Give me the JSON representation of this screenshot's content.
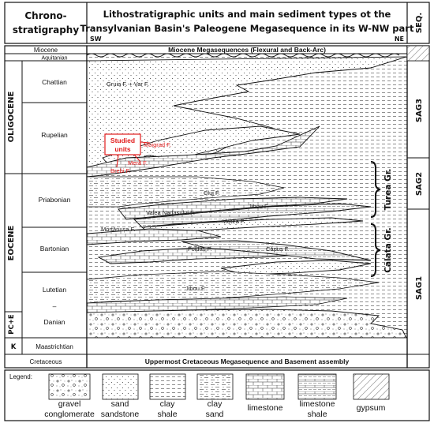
{
  "header": {
    "chrono_line1": "Chrono-",
    "chrono_line2": "stratigraphy",
    "title_line1": "Lithostratigraphic units and main sediment types ot the",
    "title_line2": "Transylvanian Basin's Paleogene Megasequence in its W-NW part",
    "sw": "SW",
    "ne": "NE",
    "seq": "SEQ."
  },
  "chrono": {
    "miocene": "Miocene",
    "aquitanian": "Aquitanian",
    "oligocene": "OLIGOCENE",
    "chattian": "Chattian",
    "rupelian": "Rupelian",
    "eocene": "EOCENE",
    "priabonian": "Priabonian",
    "bartonian": "Bartonian",
    "lutetian": "Lutetian",
    "dash": "–",
    "danian": "Danian",
    "pce": "PC+E",
    "k": "K",
    "maastrichtian": "Maastrichtian",
    "cretaceous": "Cretaceous"
  },
  "units": {
    "miocene_mega": "Miocene Megasequences (Flexural and Back-Arc)",
    "gruia": "Gruia F. + Var F.",
    "moigrad": "Moigrad F.",
    "mera": "Mera F.",
    "brebi": "Brebi F.",
    "cluj": "Cluj F.",
    "jibou_upper": "Jibou F.",
    "valea": "Valea Nadașului F.",
    "viste": "Viștea F.",
    "mortanusa": "Mortănușa F.",
    "foidas": "Foidaș F.",
    "capus": "Căpuș F.",
    "jibou_lower": "Jibou F.",
    "uppermost": "Uppermost Cretaceous Megasequence and Basement assembly",
    "studied_line1": "Studied",
    "studied_line2": "units"
  },
  "groups": {
    "turea": "Turea Gr.",
    "calata": "Călata Gr."
  },
  "sequences": {
    "sag3": "SAG3",
    "sag2": "SAG2",
    "sag1": "SAG1"
  },
  "legend": {
    "title": "Legend:",
    "items": [
      {
        "line1": "gravel",
        "line2": "conglomerate"
      },
      {
        "line1": "sand",
        "line2": "sandstone"
      },
      {
        "line1": "clay",
        "line2": "shale"
      },
      {
        "line1": "clay",
        "line2": "sand"
      },
      {
        "line1": "limestone",
        "line2": ""
      },
      {
        "line1": "limestone",
        "line2": "shale"
      },
      {
        "line1": "gypsum",
        "line2": ""
      }
    ]
  },
  "colors": {
    "studied": "#e11b1b",
    "lines": "#111111"
  }
}
